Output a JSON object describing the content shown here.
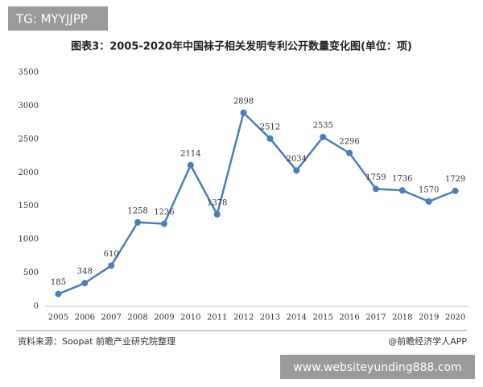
{
  "chart_data": {
    "type": "line",
    "title": "图表3：2005-2020年中国袜子相关发明专利公开数量变化图(单位：项)",
    "categories": [
      "2005",
      "2006",
      "2007",
      "2008",
      "2009",
      "2010",
      "2011",
      "2012",
      "2013",
      "2014",
      "2015",
      "2016",
      "2017",
      "2018",
      "2019",
      "2020"
    ],
    "values": [
      185,
      348,
      610,
      1258,
      1236,
      2114,
      1378,
      2898,
      2512,
      2034,
      2535,
      2296,
      1759,
      1736,
      1570,
      1729
    ],
    "color": "#4a7ebb",
    "ylim": [
      0,
      3500
    ],
    "yticks": [
      0,
      500,
      1000,
      1500,
      2000,
      2500,
      3000,
      3500
    ],
    "grid": false,
    "source": "资料来源：Soopat 前瞻产业研究院整理",
    "credit": "@前瞻经济学人APP"
  },
  "overlay": {
    "tag": "TG: MYYJJPP",
    "url": "www.websiteyunding888.com"
  }
}
